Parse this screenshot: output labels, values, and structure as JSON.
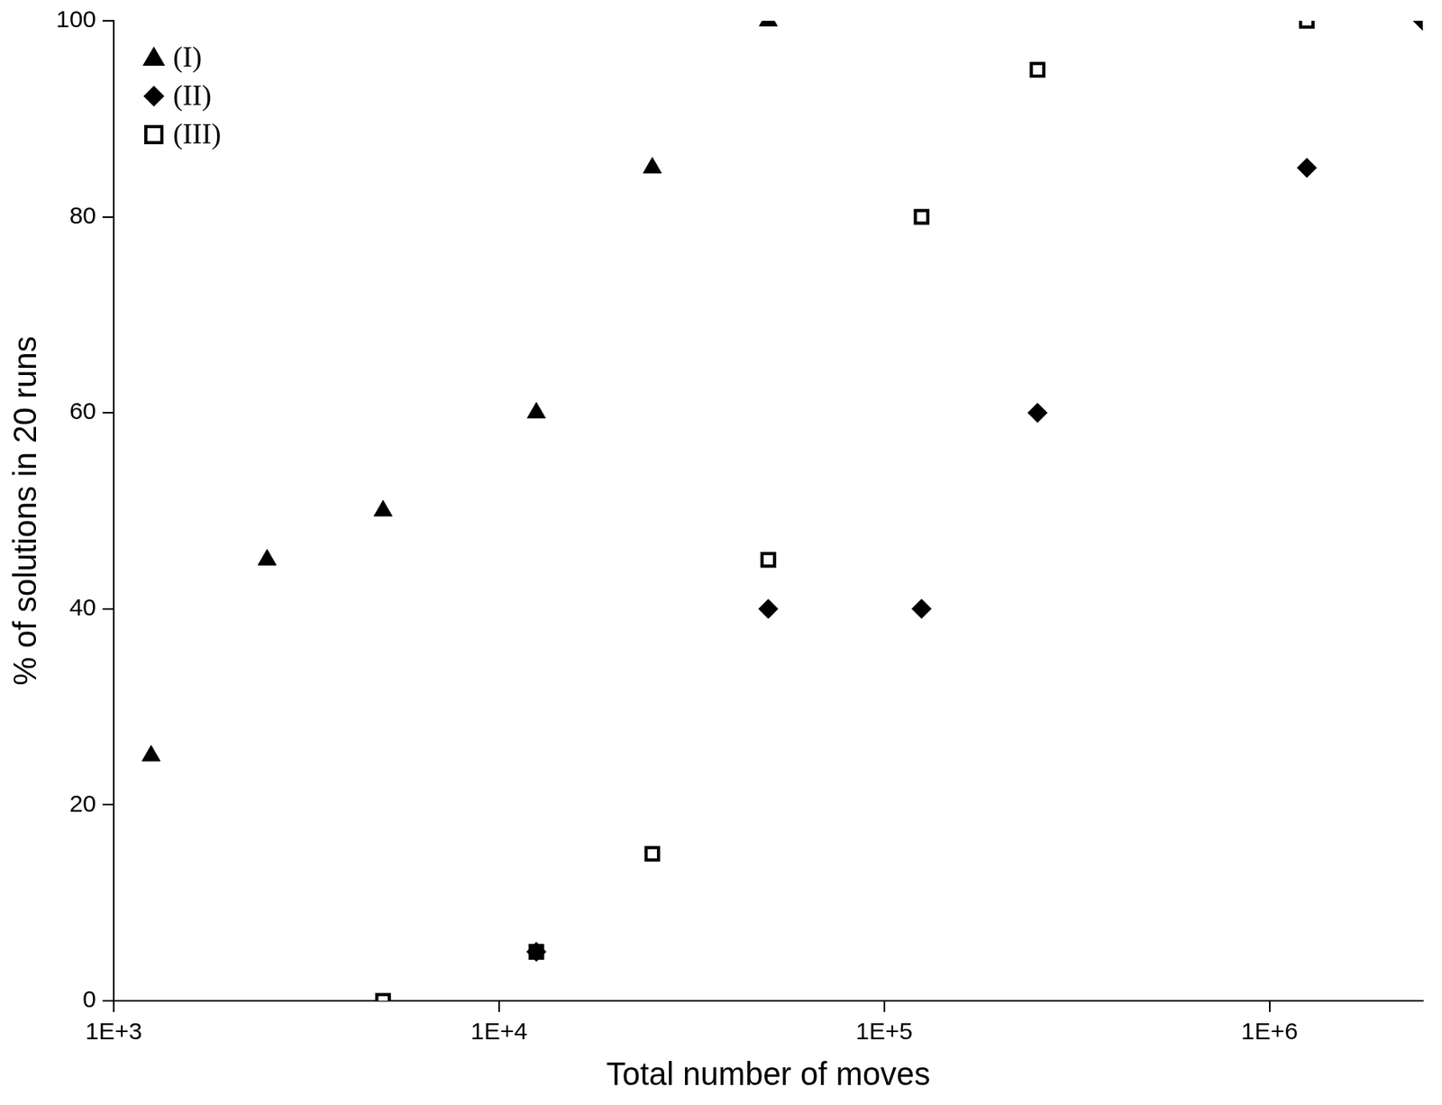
{
  "chart_data": {
    "type": "scatter",
    "x_label": "Total number of moves",
    "y_label": "% of solutions in 20 runs",
    "log": "x",
    "grid": false,
    "legend": "top-left",
    "xlim": [
      1000,
      2500000
    ],
    "xticks": [
      {
        "value": 1000,
        "label": "1E+3"
      },
      {
        "value": 10000,
        "label": "1E+4"
      },
      {
        "value": 100000,
        "label": "1E+5"
      },
      {
        "value": 1000000,
        "label": "1E+6"
      }
    ],
    "ylim": [
      0,
      100
    ],
    "yticks": [
      0,
      20,
      40,
      60,
      80,
      100
    ],
    "series": [
      {
        "name": "(I)",
        "color": "#000000",
        "marker": "triangle",
        "x": [
          1250,
          2500,
          5000,
          12500,
          25000,
          50000
        ],
        "values": [
          25,
          45,
          50,
          60,
          85,
          100
        ]
      },
      {
        "name": "(II)",
        "color": "#000000",
        "marker": "diamond",
        "x": [
          12500,
          50000,
          125000,
          250000,
          1250000,
          2500000
        ],
        "values": [
          5,
          40,
          40,
          60,
          85,
          100
        ]
      },
      {
        "name": "(III)",
        "color": "#000000",
        "marker": "square_open",
        "x": [
          5000,
          12500,
          25000,
          50000,
          125000,
          250000,
          1250000
        ],
        "values": [
          0,
          5,
          15,
          45,
          80,
          95,
          100
        ]
      }
    ]
  }
}
